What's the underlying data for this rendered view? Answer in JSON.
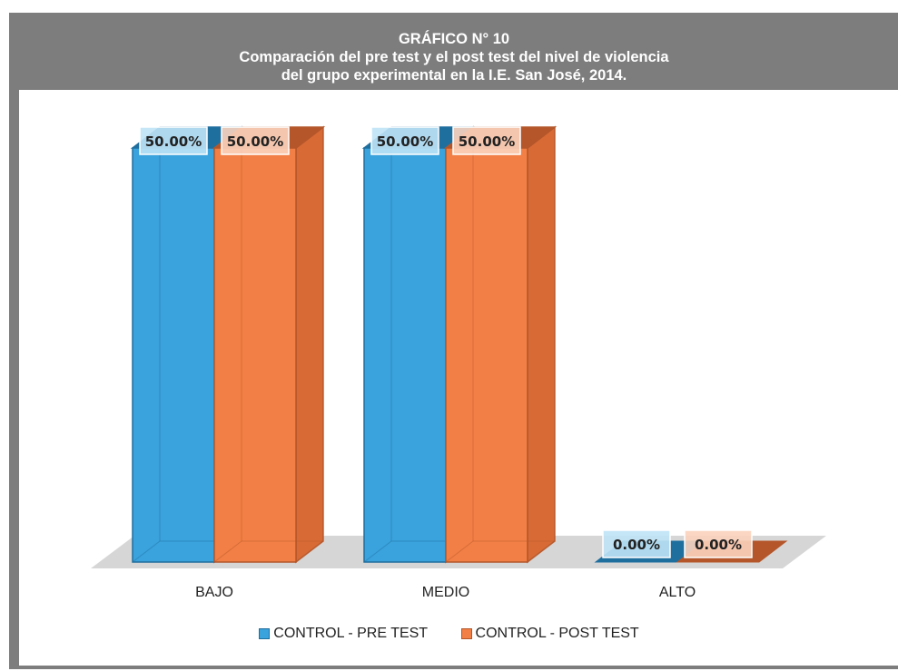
{
  "header": {
    "line1": "GRÁFICO N° 10",
    "line2": "Comparación del pre test y el post test del nivel de violencia",
    "line3": "del grupo experimental en la I.E. San José, 2014."
  },
  "colors": {
    "pre_test": "#3aa2dc",
    "post_test": "#f27f45",
    "header_bg": "#7d7d7d"
  },
  "chart_data": {
    "type": "bar",
    "categories": [
      "BAJO",
      "MEDIO",
      "ALTO"
    ],
    "series": [
      {
        "name": "CONTROL - PRE TEST",
        "values": [
          50,
          50,
          0
        ],
        "labels": [
          "50.00%",
          "50.00%",
          "0.00%"
        ]
      },
      {
        "name": "CONTROL - POST TEST",
        "values": [
          50,
          50,
          0
        ],
        "labels": [
          "50.00%",
          "50.00%",
          "0.00%"
        ]
      }
    ],
    "ylim": [
      0,
      50
    ],
    "grid": false,
    "legend": "bottom-center",
    "style": "3d-clustered-column"
  }
}
